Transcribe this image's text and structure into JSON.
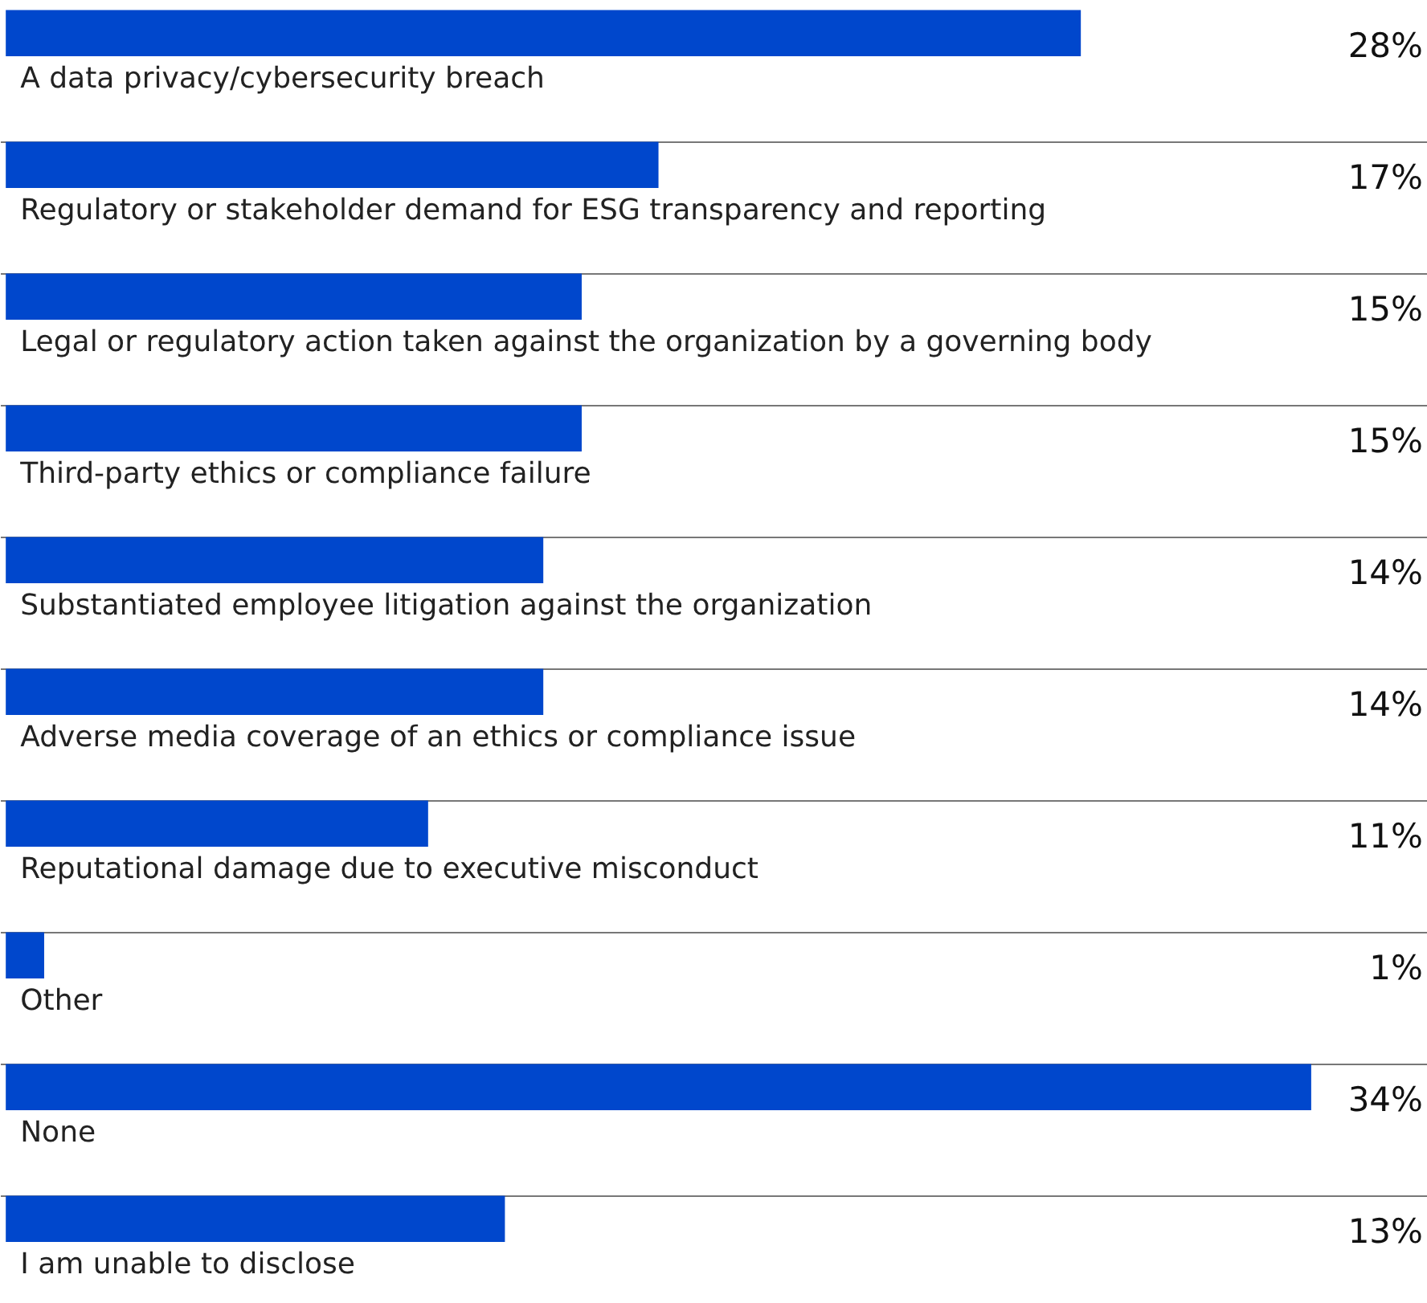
{
  "chart_data": {
    "type": "bar",
    "orientation": "horizontal",
    "categories": [
      "A data privacy/cybersecurity breach",
      "Regulatory or stakeholder demand for ESG transparency and reporting",
      "Legal or regulatory action taken against the organization by a governing body",
      "Third-party ethics or compliance failure",
      "Substantiated employee litigation against the organization",
      "Adverse media coverage of an ethics or compliance issue",
      "Reputational damage due to executive misconduct",
      "Other",
      "None",
      "I am unable to disclose"
    ],
    "values": [
      28,
      17,
      15,
      15,
      14,
      14,
      11,
      1,
      34,
      13
    ],
    "value_labels": [
      "28%",
      "17%",
      "15%",
      "15%",
      "14%",
      "14%",
      "11%",
      "1%",
      "34%",
      "13%"
    ],
    "color": "#0047cc",
    "grid": "y"
  }
}
